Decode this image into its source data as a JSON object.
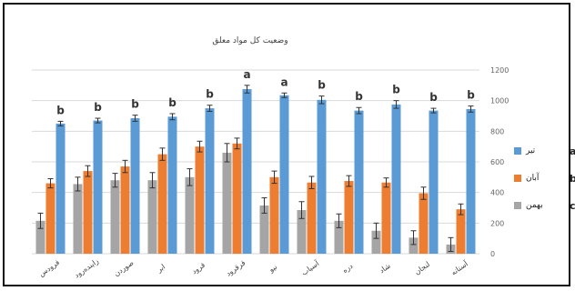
{
  "chart_data": {
    "type": "bar",
    "title": "وضعیت کل مواد معلق",
    "ylim": [
      0,
      1200
    ],
    "yticks": [
      0,
      200,
      400,
      600,
      800,
      1000,
      1200
    ],
    "categories": [
      "فرودس",
      "زاینده‌رود",
      "صوردن",
      "ابر",
      "قرود",
      "قرقرود",
      "نیو",
      "آسیاب",
      "دره",
      "شاد",
      "لنجان",
      "آستانه"
    ],
    "group_letters": [
      "b",
      "b",
      "b",
      "b",
      "b",
      "a",
      "a",
      "b",
      "b",
      "b",
      "b",
      "b"
    ],
    "series": [
      {
        "name": "تیر",
        "letter": "a",
        "color": "#5b9bd5",
        "values": [
          850,
          870,
          885,
          895,
          950,
          1075,
          1035,
          1005,
          935,
          975,
          935,
          945
        ],
        "errors": [
          15,
          15,
          20,
          20,
          20,
          25,
          15,
          25,
          20,
          25,
          15,
          20
        ]
      },
      {
        "name": "آبان",
        "letter": "b",
        "color": "#ed7d31",
        "values": [
          460,
          540,
          570,
          650,
          700,
          720,
          500,
          465,
          475,
          465,
          395,
          290
        ],
        "errors": [
          30,
          35,
          40,
          40,
          35,
          35,
          40,
          40,
          35,
          30,
          40,
          35
        ]
      },
      {
        "name": "بهمن",
        "letter": "c",
        "color": "#a5a5a5",
        "values": [
          215,
          455,
          480,
          480,
          500,
          660,
          315,
          285,
          215,
          150,
          105,
          60
        ],
        "errors": [
          50,
          45,
          45,
          50,
          55,
          60,
          50,
          55,
          45,
          50,
          45,
          45
        ]
      }
    ],
    "legend_position": "right",
    "grid": true
  }
}
